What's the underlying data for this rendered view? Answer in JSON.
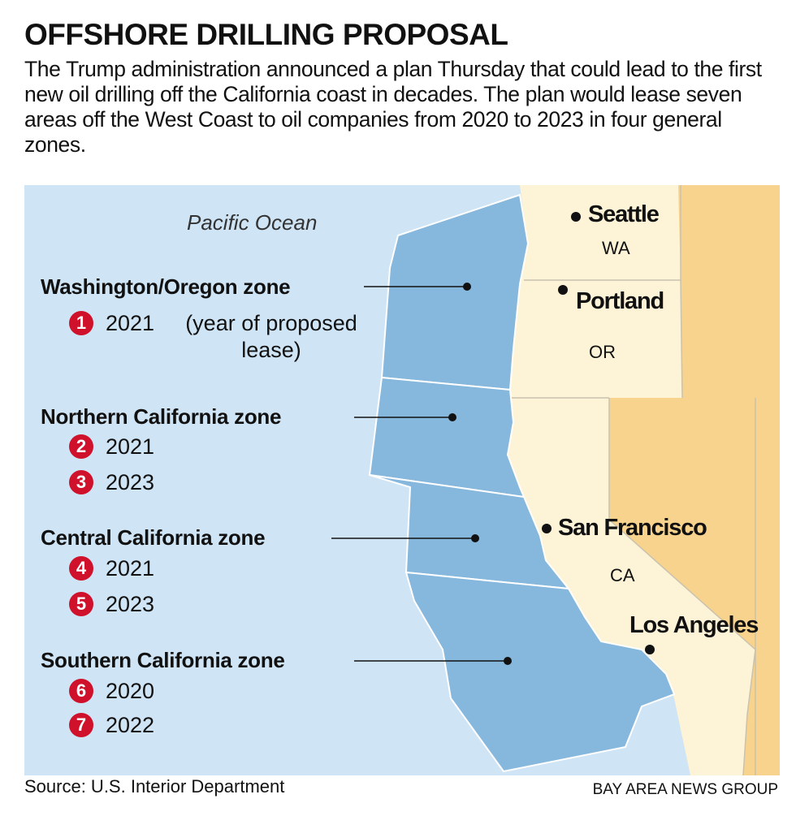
{
  "header": {
    "title": "OFFSHORE DRILLING PROPOSAL",
    "description": "The Trump administration announced a plan Thursday that could lead to the first new oil drilling off the California coast in decades. The plan would lease seven areas off the West Coast to oil companies from 2020 to 2023 in four general zones."
  },
  "map": {
    "ocean_label": "Pacific Ocean",
    "zones": [
      {
        "name": "Washington/Oregon zone",
        "leases": [
          {
            "number": 1,
            "year": 2021,
            "note": "(year of proposed lease)"
          }
        ]
      },
      {
        "name": "Northern California zone",
        "leases": [
          {
            "number": 2,
            "year": 2021
          },
          {
            "number": 3,
            "year": 2023
          }
        ]
      },
      {
        "name": "Central California zone",
        "leases": [
          {
            "number": 4,
            "year": 2021
          },
          {
            "number": 5,
            "year": 2023
          }
        ]
      },
      {
        "name": "Southern California zone",
        "leases": [
          {
            "number": 6,
            "year": 2020
          },
          {
            "number": 7,
            "year": 2022
          }
        ]
      }
    ],
    "cities": [
      "Seattle",
      "Portland",
      "San Francisco",
      "Los Angeles"
    ],
    "states": [
      "WA",
      "OR",
      "CA"
    ]
  },
  "footer": {
    "source": "Source: U.S. Interior Department",
    "credit": "BAY AREA NEWS GROUP"
  }
}
